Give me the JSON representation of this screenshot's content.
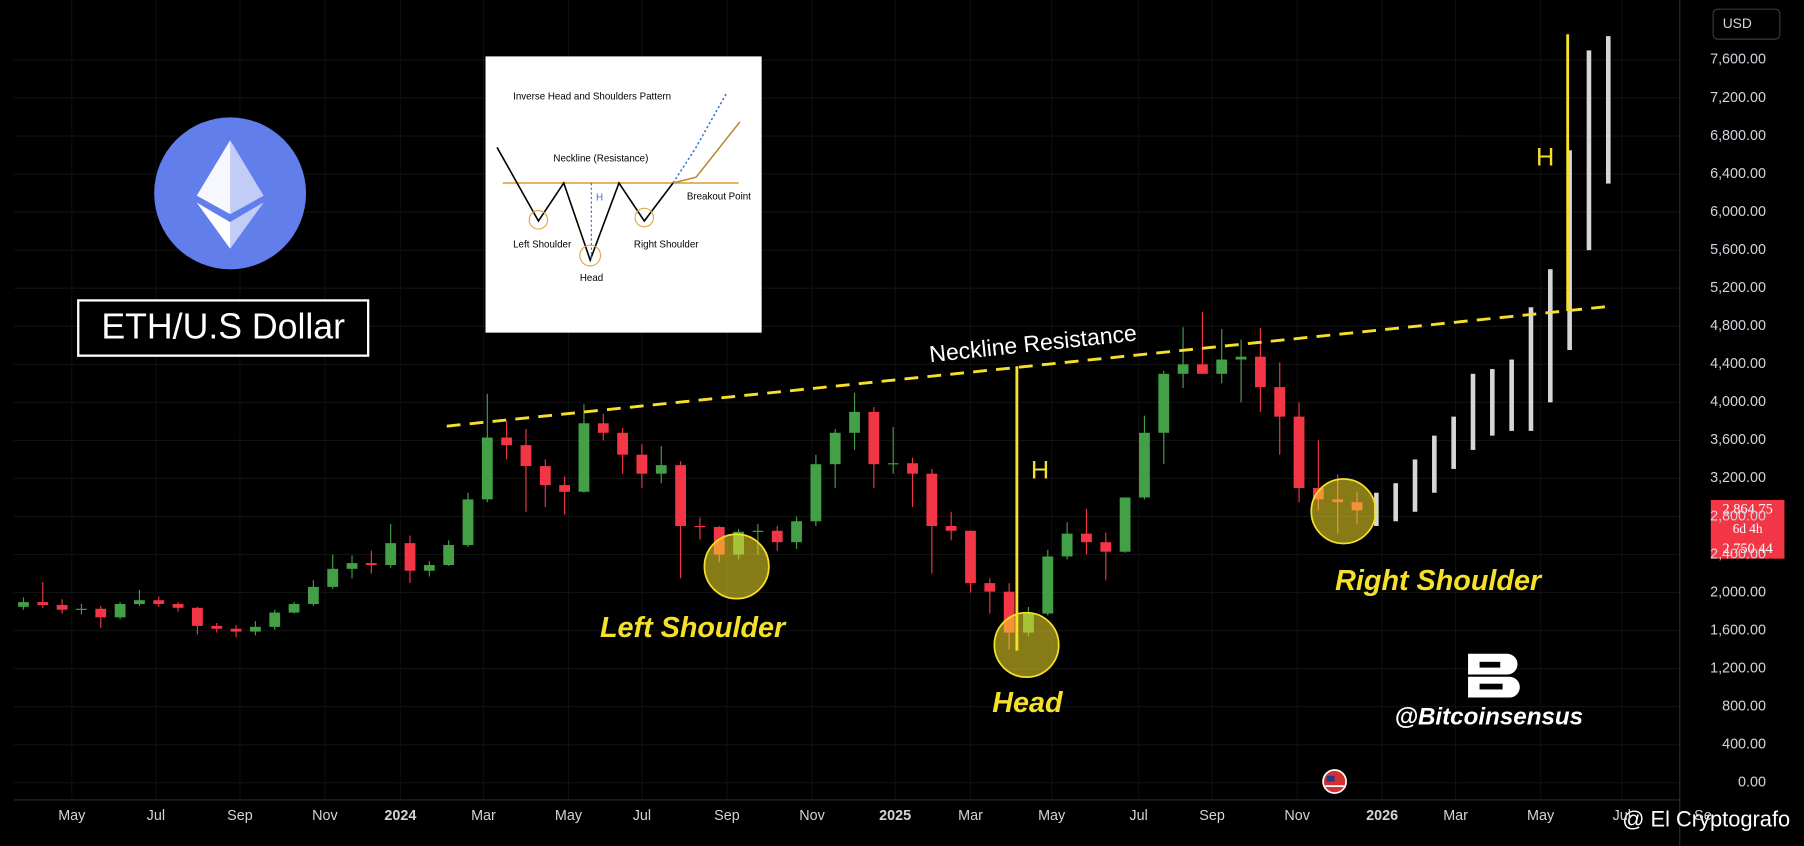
{
  "chart_data": {
    "type": "candlestick",
    "title": "ETH/U.S Dollar",
    "currency": "USD",
    "grid": true,
    "up_color": "#43a047",
    "down_color": "#f23645",
    "xlim": [
      -0.5,
      85.4
    ],
    "ylim": [
      -180,
      8230
    ],
    "yticks": [
      {
        "value": 0,
        "label": "0.00"
      },
      {
        "value": 400,
        "label": "400.00"
      },
      {
        "value": 800,
        "label": "800.00"
      },
      {
        "value": 1200,
        "label": "1,200.00"
      },
      {
        "value": 1600,
        "label": "1,600.00"
      },
      {
        "value": 2000,
        "label": "2,000.00"
      },
      {
        "value": 2400,
        "label": "2,400.00"
      },
      {
        "value": 2800,
        "label": "2,800.00"
      },
      {
        "value": 3200,
        "label": "3,200.00"
      },
      {
        "value": 3600,
        "label": "3,600.00"
      },
      {
        "value": 4000,
        "label": "4,000.00"
      },
      {
        "value": 4400,
        "label": "4,400.00"
      },
      {
        "value": 4800,
        "label": "4,800.00"
      },
      {
        "value": 5200,
        "label": "5,200.00"
      },
      {
        "value": 5600,
        "label": "5,600.00"
      },
      {
        "value": 6000,
        "label": "6,000.00"
      },
      {
        "value": 6400,
        "label": "6,400.00"
      },
      {
        "value": 6800,
        "label": "6,800.00"
      },
      {
        "value": 7200,
        "label": "7,200.00"
      },
      {
        "value": 7600,
        "label": "7,600.00"
      }
    ],
    "xticks": [
      {
        "value": 2.5,
        "label": "May"
      },
      {
        "value": 6.85,
        "label": "Jul"
      },
      {
        "value": 11.2,
        "label": "Sep"
      },
      {
        "value": 15.6,
        "label": "Nov"
      },
      {
        "value": 19.5,
        "label": "2024"
      },
      {
        "value": 23.8,
        "label": "Mar"
      },
      {
        "value": 28.2,
        "label": "May"
      },
      {
        "value": 32.0,
        "label": "Jul"
      },
      {
        "value": 36.4,
        "label": "Sep"
      },
      {
        "value": 40.8,
        "label": "Nov"
      },
      {
        "value": 45.1,
        "label": "2025"
      },
      {
        "value": 49.0,
        "label": "Mar"
      },
      {
        "value": 53.2,
        "label": "May"
      },
      {
        "value": 57.7,
        "label": "Jul"
      },
      {
        "value": 61.5,
        "label": "Sep"
      },
      {
        "value": 65.9,
        "label": "Nov"
      },
      {
        "value": 70.3,
        "label": "2026"
      },
      {
        "value": 74.1,
        "label": "Mar"
      },
      {
        "value": 78.5,
        "label": "May"
      },
      {
        "value": 82.7,
        "label": "Jul"
      },
      {
        "value": 86.9,
        "label": "Se"
      }
    ],
    "candles": {
      "ohlc": [
        [
          1850,
          1950,
          1820,
          1900
        ],
        [
          1900,
          2110,
          1840,
          1870
        ],
        [
          1870,
          1930,
          1780,
          1820
        ],
        [
          1820,
          1880,
          1770,
          1830
        ],
        [
          1830,
          1860,
          1630,
          1740
        ],
        [
          1740,
          1900,
          1720,
          1880
        ],
        [
          1880,
          2030,
          1860,
          1920
        ],
        [
          1920,
          1960,
          1850,
          1880
        ],
        [
          1880,
          1900,
          1800,
          1840
        ],
        [
          1840,
          1850,
          1560,
          1650
        ],
        [
          1650,
          1680,
          1580,
          1620
        ],
        [
          1620,
          1660,
          1530,
          1590
        ],
        [
          1590,
          1700,
          1550,
          1640
        ],
        [
          1640,
          1820,
          1610,
          1790
        ],
        [
          1790,
          1900,
          1780,
          1880
        ],
        [
          1880,
          2130,
          1860,
          2060
        ],
        [
          2060,
          2400,
          2040,
          2250
        ],
        [
          2250,
          2390,
          2150,
          2310
        ],
        [
          2310,
          2440,
          2200,
          2290
        ],
        [
          2290,
          2720,
          2260,
          2520
        ],
        [
          2520,
          2600,
          2100,
          2230
        ],
        [
          2230,
          2330,
          2170,
          2290
        ],
        [
          2290,
          2550,
          2280,
          2500
        ],
        [
          2500,
          3050,
          2480,
          2980
        ],
        [
          2980,
          4090,
          2950,
          3630
        ],
        [
          3630,
          3800,
          3400,
          3550
        ],
        [
          3550,
          3720,
          2850,
          3330
        ],
        [
          3330,
          3400,
          2900,
          3130
        ],
        [
          3130,
          3220,
          2820,
          3060
        ],
        [
          3060,
          3980,
          3050,
          3780
        ],
        [
          3780,
          3880,
          3600,
          3680
        ],
        [
          3680,
          3730,
          3250,
          3450
        ],
        [
          3450,
          3560,
          3100,
          3250
        ],
        [
          3250,
          3540,
          3150,
          3340
        ],
        [
          3340,
          3380,
          2150,
          2700
        ],
        [
          2700,
          2790,
          2560,
          2690
        ],
        [
          2690,
          2700,
          2320,
          2400
        ],
        [
          2400,
          2670,
          2350,
          2640
        ],
        [
          2640,
          2720,
          2400,
          2650
        ],
        [
          2650,
          2700,
          2440,
          2530
        ],
        [
          2530,
          2800,
          2460,
          2750
        ],
        [
          2750,
          3450,
          2700,
          3350
        ],
        [
          3350,
          3720,
          3100,
          3680
        ],
        [
          3680,
          4100,
          3500,
          3900
        ],
        [
          3900,
          3950,
          3100,
          3350
        ],
        [
          3350,
          3740,
          3250,
          3360
        ],
        [
          3360,
          3420,
          2900,
          3250
        ],
        [
          3250,
          3300,
          2200,
          2700
        ],
        [
          2700,
          2850,
          2550,
          2650
        ],
        [
          2650,
          2650,
          2000,
          2100
        ],
        [
          2100,
          2150,
          1780,
          2010
        ],
        [
          2010,
          2100,
          1400,
          1580
        ],
        [
          1580,
          1850,
          1540,
          1780
        ],
        [
          1780,
          2450,
          1760,
          2380
        ],
        [
          2380,
          2740,
          2350,
          2620
        ],
        [
          2620,
          2880,
          2400,
          2530
        ],
        [
          2530,
          2630,
          2130,
          2430
        ],
        [
          2430,
          3000,
          2420,
          3000
        ],
        [
          3000,
          3860,
          2980,
          3680
        ],
        [
          3680,
          4330,
          3350,
          4300
        ],
        [
          4300,
          4790,
          4150,
          4400
        ],
        [
          4400,
          4950,
          4300,
          4300
        ],
        [
          4300,
          4770,
          4200,
          4450
        ],
        [
          4450,
          4660,
          4000,
          4480
        ],
        [
          4480,
          4780,
          3900,
          4160
        ],
        [
          4160,
          4420,
          3450,
          3850
        ],
        [
          3850,
          4000,
          2950,
          3100
        ],
        [
          3100,
          3600,
          2860,
          2980
        ],
        [
          2980,
          3240,
          2620,
          2950
        ],
        [
          2950,
          3060,
          2720,
          2864.75
        ]
      ]
    },
    "projection": {
      "color": "#d6d6d6",
      "ranges": [
        [
          2700,
          3050
        ],
        [
          2750,
          3150
        ],
        [
          2850,
          3400
        ],
        [
          3050,
          3650
        ],
        [
          3300,
          3850
        ],
        [
          3500,
          4300
        ],
        [
          3650,
          4350
        ],
        [
          3700,
          4450
        ],
        [
          3700,
          5000
        ],
        [
          4000,
          5400
        ],
        [
          4550,
          6650
        ],
        [
          5600,
          7700
        ],
        [
          6300,
          7850
        ]
      ]
    },
    "price_tag": {
      "price": "2,864.75",
      "countdown": "6d 4h",
      "low": "2,750.44"
    },
    "neckline": {
      "label": "Neckline Resistance",
      "color": "#f5e02a",
      "from": [
        21.9,
        3750
      ],
      "to": [
        82.1,
        5010
      ]
    },
    "measures": [
      {
        "label": "H",
        "x": 51.4,
        "from": 4380,
        "to": 1390
      },
      {
        "label": "H",
        "x": 79.9,
        "from": 7870,
        "to": 4960
      }
    ],
    "pattern": [
      {
        "label": "Left Shoulder",
        "x": 36.9,
        "y": 2275
      },
      {
        "label": "Head",
        "x": 51.9,
        "y": 1450
      },
      {
        "label": "Right Shoulder",
        "x": 68.3,
        "y": 2855
      }
    ],
    "inset": {
      "title": "Inverse Head and Shoulders Pattern",
      "neckline": "Neckline (Resistance)",
      "breakout": "Breakout Point",
      "left": "Left Shoulder",
      "right": "Right Shoulder",
      "head": "Head",
      "h": "H"
    },
    "watermark": "@Bitcoinsensus",
    "credit": "@ El Cryptografo"
  }
}
